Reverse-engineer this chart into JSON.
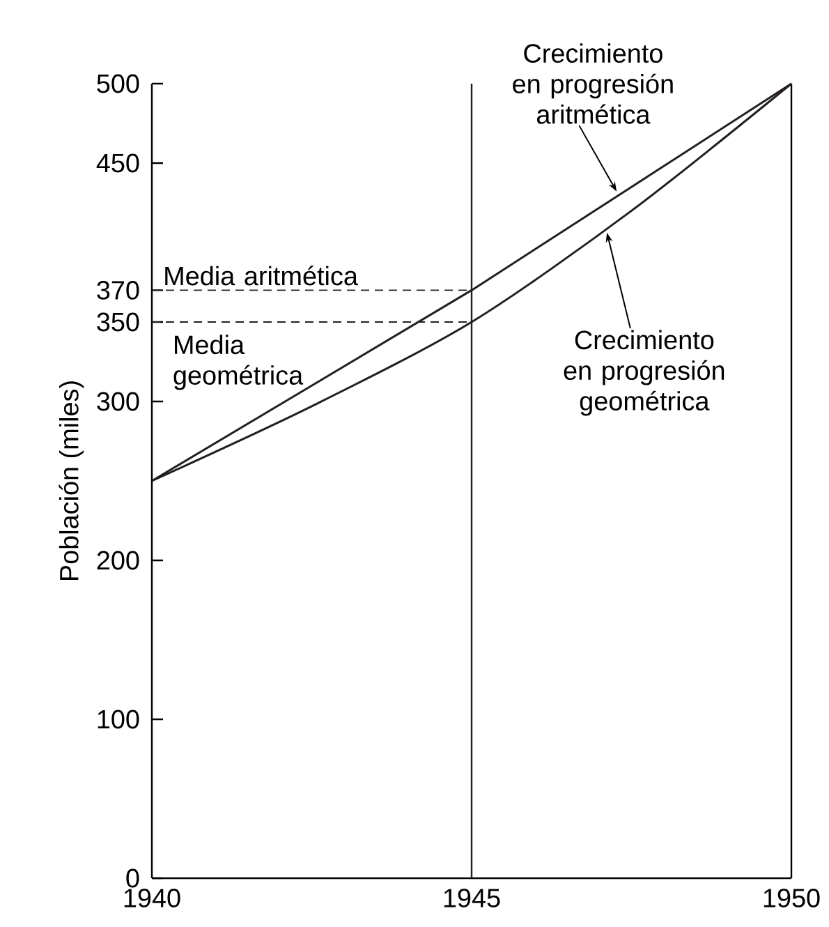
{
  "chart_data": {
    "type": "line",
    "ylabel": "Población (miles)",
    "x": [
      1940,
      1942.5,
      1945,
      1947.5,
      1950
    ],
    "series": [
      {
        "name": "Crecimiento en progresión aritmética",
        "color": "#231f20",
        "line_style": "solid",
        "values": [
          250,
          310,
          370,
          435,
          500
        ]
      },
      {
        "name": "Crecimiento en progresión geométrica",
        "color": "#231f20",
        "line_style": "solid",
        "values": [
          250,
          297,
          350,
          420,
          500
        ]
      },
      {
        "name": "Media aritmética",
        "color": "#231f20",
        "line_style": "dashed",
        "values": [
          370,
          370,
          370,
          null,
          null
        ]
      },
      {
        "name": "Media geométrica",
        "color": "#231f20",
        "line_style": "dashed",
        "values": [
          350,
          350,
          350,
          null,
          null
        ]
      }
    ],
    "ref_lines": [
      {
        "axis": "x",
        "value": 1945,
        "color": "#231f20"
      }
    ],
    "xlim": [
      1940,
      1950
    ],
    "ylim": [
      0,
      500
    ],
    "xticks": [
      1940,
      1945,
      1950
    ],
    "yticks": [
      0,
      100,
      200,
      300,
      350,
      370,
      450,
      500
    ],
    "grid": false,
    "marker": "none"
  }
}
